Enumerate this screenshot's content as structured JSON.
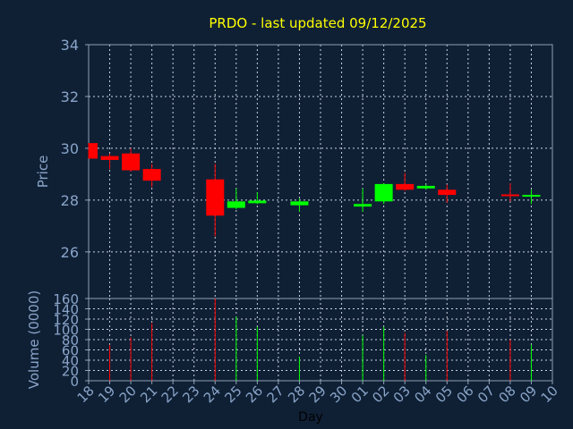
{
  "colors": {
    "background": "#0f2035",
    "plot_border": "#8fa0b8",
    "grid": "#c8d0dc",
    "title": "#ffff00",
    "axis_text": "#8aa4c8",
    "xlabel_text": "#000000",
    "up": "#00ff00",
    "down": "#ff0000"
  },
  "chart_data": {
    "type": "candlestick",
    "title": "PRDO - last updated 09/12/2025",
    "ylabel": "Price",
    "volume_label": "Volume (0000)",
    "xlabel": "Day",
    "price_ylim": [
      24.2,
      34
    ],
    "price_ticks": [
      26,
      28,
      30,
      32,
      34
    ],
    "volume_ylim": [
      0,
      160
    ],
    "volume_ticks": [
      0,
      20,
      40,
      60,
      80,
      100,
      120,
      140,
      160
    ],
    "x_ticks": [
      "18",
      "19",
      "20",
      "21",
      "22",
      "23",
      "24",
      "25",
      "26",
      "27",
      "28",
      "29",
      "30",
      "01",
      "02",
      "03",
      "04",
      "05",
      "06",
      "07",
      "08",
      "09",
      "10"
    ],
    "grid": true,
    "candles": [
      {
        "day": "18",
        "open": 30.2,
        "close": 29.6,
        "high": 30.2,
        "low": 29.6,
        "volume": null
      },
      {
        "day": "19",
        "open": 29.7,
        "close": 29.55,
        "high": 29.8,
        "low": 29.2,
        "volume": 70
      },
      {
        "day": "20",
        "open": 29.8,
        "close": 29.15,
        "high": 30.0,
        "low": 29.1,
        "volume": 85
      },
      {
        "day": "21",
        "open": 29.2,
        "close": 28.75,
        "high": 29.4,
        "low": 28.5,
        "volume": 112
      },
      {
        "day": "24",
        "open": 28.8,
        "close": 27.4,
        "high": 29.4,
        "low": 26.6,
        "volume": 160
      },
      {
        "day": "25",
        "open": 27.7,
        "close": 27.95,
        "high": 28.45,
        "low": 27.65,
        "volume": 125
      },
      {
        "day": "26",
        "open": 27.88,
        "close": 27.98,
        "high": 28.3,
        "low": 27.85,
        "volume": 105
      },
      {
        "day": "28",
        "open": 27.8,
        "close": 27.95,
        "high": 28.05,
        "low": 27.55,
        "volume": 47
      },
      {
        "day": "01",
        "open": 27.75,
        "close": 27.85,
        "high": 28.45,
        "low": 27.55,
        "volume": 88
      },
      {
        "day": "02",
        "open": 27.95,
        "close": 28.62,
        "high": 28.65,
        "low": 27.85,
        "volume": 105
      },
      {
        "day": "03",
        "open": 28.62,
        "close": 28.4,
        "high": 29.05,
        "low": 28.35,
        "volume": 93
      },
      {
        "day": "04",
        "open": 28.45,
        "close": 28.55,
        "high": 28.6,
        "low": 28.4,
        "volume": 50
      },
      {
        "day": "05",
        "open": 28.4,
        "close": 28.2,
        "high": 28.6,
        "low": 27.9,
        "volume": 97
      },
      {
        "day": "08",
        "open": 28.22,
        "close": 28.18,
        "high": 28.65,
        "low": 27.95,
        "volume": 80
      },
      {
        "day": "09",
        "open": 28.15,
        "close": 28.2,
        "high": 28.4,
        "low": 27.85,
        "volume": 70
      }
    ]
  }
}
